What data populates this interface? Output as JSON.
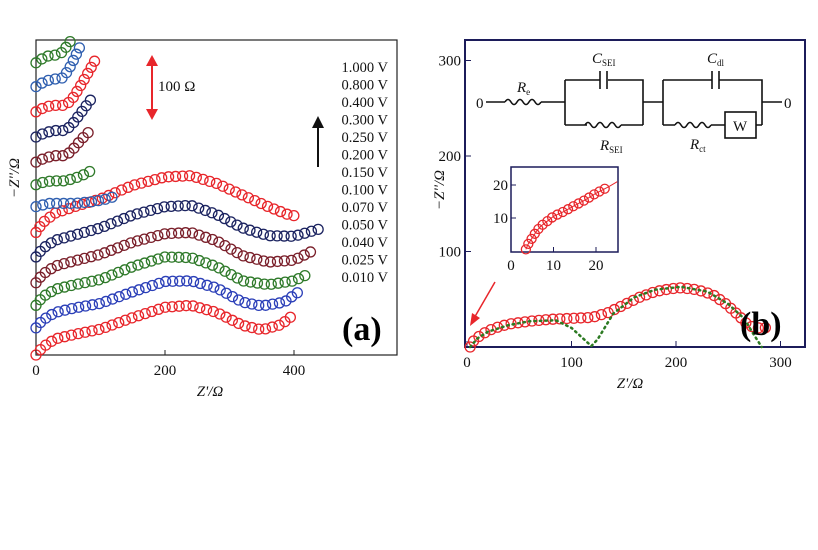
{
  "chart_data": [
    {
      "type": "scatter",
      "panel_label": "(a)",
      "xlabel": "Z'/Ω",
      "ylabel": "−Z''/Ω",
      "xlim": [
        0,
        560
      ],
      "x_ticks": [
        "0",
        "200",
        "400"
      ],
      "x_tick_values": [
        0,
        200,
        400
      ],
      "y_ticks": [],
      "scale_bar_label": "100 Ω",
      "scale_bar_value": 100,
      "arrow_direction": "up",
      "grid": false,
      "legend_placement": "right",
      "marker": "open-circle",
      "series": [
        {
          "name": "0.010 V",
          "color": "#e8262b",
          "vertical_offset": 0,
          "points": [
            [
              0,
              0
            ],
            [
              10,
              12
            ],
            [
              30,
              25
            ],
            [
              60,
              32
            ],
            [
              100,
              40
            ],
            [
              150,
              58
            ],
            [
              200,
              74
            ],
            [
              240,
              77
            ],
            [
              280,
              66
            ],
            [
              320,
              46
            ],
            [
              350,
              39
            ],
            [
              380,
              47
            ],
            [
              400,
              63
            ]
          ]
        },
        {
          "name": "0.025 V",
          "color": "#2b3fb8",
          "vertical_offset": 42,
          "points": [
            [
              0,
              0
            ],
            [
              10,
              12
            ],
            [
              30,
              24
            ],
            [
              60,
              31
            ],
            [
              100,
              38
            ],
            [
              150,
              56
            ],
            [
              200,
              72
            ],
            [
              240,
              73
            ],
            [
              280,
              62
            ],
            [
              320,
              40
            ],
            [
              350,
              34
            ],
            [
              385,
              40
            ],
            [
              410,
              58
            ]
          ]
        },
        {
          "name": "0.040 V",
          "color": "#2f7a2a",
          "vertical_offset": 77,
          "points": [
            [
              0,
              0
            ],
            [
              10,
              13
            ],
            [
              30,
              25
            ],
            [
              60,
              32
            ],
            [
              100,
              40
            ],
            [
              150,
              60
            ],
            [
              200,
              75
            ],
            [
              240,
              74
            ],
            [
              280,
              60
            ],
            [
              320,
              38
            ],
            [
              360,
              32
            ],
            [
              400,
              38
            ],
            [
              425,
              50
            ]
          ]
        },
        {
          "name": "0.050 V",
          "color": "#7a1f2a",
          "vertical_offset": 112,
          "points": [
            [
              0,
              0
            ],
            [
              10,
              13
            ],
            [
              30,
              26
            ],
            [
              60,
              34
            ],
            [
              100,
              44
            ],
            [
              150,
              63
            ],
            [
              200,
              76
            ],
            [
              240,
              78
            ],
            [
              280,
              65
            ],
            [
              320,
              42
            ],
            [
              360,
              32
            ],
            [
              400,
              35
            ],
            [
              430,
              50
            ]
          ]
        },
        {
          "name": "0.070 V",
          "color": "#1b2360",
          "vertical_offset": 152,
          "points": [
            [
              0,
              0
            ],
            [
              10,
              13
            ],
            [
              30,
              26
            ],
            [
              60,
              34
            ],
            [
              100,
              45
            ],
            [
              150,
              65
            ],
            [
              200,
              78
            ],
            [
              240,
              80
            ],
            [
              280,
              66
            ],
            [
              320,
              45
            ],
            [
              360,
              33
            ],
            [
              400,
              32
            ],
            [
              445,
              45
            ]
          ]
        },
        {
          "name": "0.100 V",
          "color": "#e8262b",
          "vertical_offset": 190,
          "points": [
            [
              0,
              0
            ],
            [
              10,
              15
            ],
            [
              30,
              30
            ],
            [
              60,
              40
            ],
            [
              100,
              52
            ],
            [
              150,
              73
            ],
            [
              200,
              86
            ],
            [
              240,
              88
            ],
            [
              280,
              76
            ],
            [
              320,
              58
            ],
            [
              360,
              40
            ],
            [
              390,
              28
            ],
            [
              410,
              24
            ]
          ]
        },
        {
          "name": "0.150 V",
          "color": "#2f5fb0",
          "vertical_offset": 230,
          "points": [
            [
              0,
              0
            ],
            [
              20,
              5
            ],
            [
              60,
              5
            ],
            [
              90,
              8
            ],
            [
              110,
              12
            ],
            [
              122,
              16
            ]
          ]
        },
        {
          "name": "0.200 V",
          "color": "#2f7a2a",
          "vertical_offset": 264,
          "points": [
            [
              0,
              0
            ],
            [
              15,
              5
            ],
            [
              30,
              6
            ],
            [
              45,
              6
            ],
            [
              60,
              10
            ],
            [
              75,
              16
            ],
            [
              84,
              21
            ]
          ]
        },
        {
          "name": "0.250 V",
          "color": "#7a1f2a",
          "vertical_offset": 299,
          "points": [
            [
              0,
              0
            ],
            [
              15,
              7
            ],
            [
              30,
              10
            ],
            [
              45,
              10
            ],
            [
              55,
              17
            ],
            [
              70,
              35
            ],
            [
              88,
              53
            ]
          ]
        },
        {
          "name": "0.300 V",
          "color": "#1b2360",
          "vertical_offset": 338,
          "points": [
            [
              0,
              0
            ],
            [
              15,
              7
            ],
            [
              30,
              10
            ],
            [
              45,
              10
            ],
            [
              55,
              18
            ],
            [
              70,
              38
            ],
            [
              88,
              62
            ]
          ]
        },
        {
          "name": "0.400 V",
          "color": "#e8262b",
          "vertical_offset": 377,
          "points": [
            [
              0,
              0
            ],
            [
              15,
              8
            ],
            [
              30,
              10
            ],
            [
              45,
              10
            ],
            [
              55,
              18
            ],
            [
              70,
              42
            ],
            [
              85,
              68
            ],
            [
              96,
              88
            ]
          ]
        },
        {
          "name": "0.800 V",
          "color": "#2f5fb0",
          "vertical_offset": 416,
          "points": [
            [
              0,
              0
            ],
            [
              15,
              9
            ],
            [
              30,
              12
            ],
            [
              40,
              13
            ],
            [
              50,
              25
            ],
            [
              60,
              45
            ],
            [
              71,
              68
            ]
          ]
        },
        {
          "name": "1.000 V",
          "color": "#2f7a2a",
          "vertical_offset": 453,
          "points": [
            [
              0,
              0
            ],
            [
              15,
              10
            ],
            [
              30,
              12
            ],
            [
              40,
              16
            ],
            [
              48,
              26
            ],
            [
              55,
              36
            ]
          ]
        }
      ]
    },
    {
      "type": "scatter",
      "panel_label": "(b)",
      "xlabel": "Z'/Ω",
      "ylabel": "−Z''/Ω",
      "xlim": [
        0,
        325
      ],
      "ylim": [
        0,
        330
      ],
      "x_ticks": [
        "0",
        "100",
        "200",
        "300"
      ],
      "x_tick_values": [
        0,
        100,
        200,
        300
      ],
      "y_ticks": [
        "100",
        "200",
        "300"
      ],
      "y_tick_values": [
        100,
        200,
        300
      ],
      "grid": false,
      "frame_color": "#1c1c5a",
      "series": [
        {
          "kind": "experimental",
          "marker": "open-circle",
          "color": "#e8262b",
          "points": [
            [
              3,
              0
            ],
            [
              5,
              5
            ],
            [
              10,
              10
            ],
            [
              20,
              17
            ],
            [
              30,
              21
            ],
            [
              40,
              24
            ],
            [
              60,
              27
            ],
            [
              80,
              29
            ],
            [
              100,
              30
            ],
            [
              120,
              31
            ],
            [
              135,
              36
            ],
            [
              150,
              44
            ],
            [
              165,
              52
            ],
            [
              180,
              58
            ],
            [
              195,
              61
            ],
            [
              205,
              62
            ],
            [
              220,
              60
            ],
            [
              235,
              55
            ],
            [
              248,
              45
            ],
            [
              260,
              33
            ],
            [
              268,
              24
            ],
            [
              275,
              20
            ],
            [
              285,
              20
            ],
            [
              292,
              22
            ]
          ]
        },
        {
          "kind": "fit",
          "line": "dotted",
          "color": "#2c7a22",
          "points": [
            [
              3,
              0
            ],
            [
              10,
              9
            ],
            [
              20,
              16
            ],
            [
              40,
              23
            ],
            [
              60,
              27
            ],
            [
              85,
              28
            ],
            [
              100,
              20
            ],
            [
              112,
              8
            ],
            [
              119,
              1
            ],
            [
              125,
              8
            ],
            [
              140,
              35
            ],
            [
              160,
              52
            ],
            [
              180,
              60
            ],
            [
              205,
              63
            ],
            [
              230,
              58
            ],
            [
              250,
              45
            ],
            [
              265,
              30
            ],
            [
              275,
              12
            ],
            [
              282,
              0
            ]
          ]
        }
      ],
      "inset": {
        "xlim": [
          0,
          25
        ],
        "ylim": [
          0,
          25
        ],
        "x_ticks": [
          "0",
          "10",
          "20"
        ],
        "x_tick_values": [
          0,
          10,
          20
        ],
        "y_ticks": [
          "10",
          "20"
        ],
        "y_tick_values": [
          10,
          20
        ],
        "color": "#e8262b",
        "points": [
          [
            3.5,
            0.5
          ],
          [
            4,
            2
          ],
          [
            5,
            4
          ],
          [
            6,
            6
          ],
          [
            7,
            7.5
          ],
          [
            8.5,
            9
          ],
          [
            10,
            10.5
          ],
          [
            12.5,
            12
          ],
          [
            15,
            13.8
          ],
          [
            17.5,
            15.5
          ],
          [
            20,
            17.5
          ],
          [
            23,
            19.5
          ],
          [
            25,
            21
          ]
        ]
      },
      "equivalent_circuit": {
        "terminal_left": "0",
        "terminal_right": "0",
        "Re": {
          "main": "R",
          "sub": "e"
        },
        "Csei": {
          "main": "C",
          "sub": "SEI"
        },
        "Rsei": {
          "main": "R",
          "sub": "SEI"
        },
        "Cdl": {
          "main": "C",
          "sub": "dl"
        },
        "Rct": {
          "main": "R",
          "sub": "ct"
        },
        "warburg": "W"
      }
    }
  ]
}
